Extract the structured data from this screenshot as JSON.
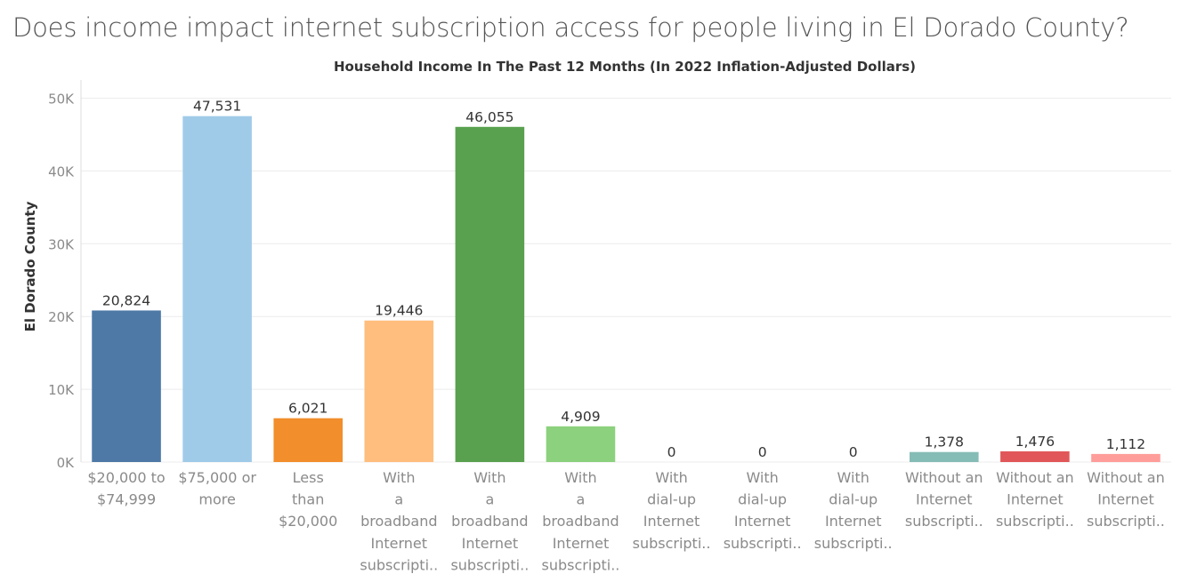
{
  "title": "Does income impact internet subscription access for people living in El Dorado County?",
  "chart_data": {
    "type": "bar",
    "column_header": "Household Income In The Past 12 Months (In 2022 Inflation-Adjusted Dollars)",
    "ylabel": "El Dorado County",
    "ylim": [
      0,
      52500
    ],
    "y_ticks": [
      0,
      10000,
      20000,
      30000,
      40000,
      50000
    ],
    "y_tick_labels": [
      "0K",
      "10K",
      "20K",
      "30K",
      "40K",
      "50K"
    ],
    "grid": true,
    "categories": [
      [
        "$20,000 to",
        "$74,999"
      ],
      [
        "$75,000 or",
        "more"
      ],
      [
        "Less",
        "than",
        "$20,000"
      ],
      [
        "With",
        "a",
        "broadband",
        "Internet",
        "subscripti.."
      ],
      [
        "With",
        "a",
        "broadband",
        "Internet",
        "subscripti.."
      ],
      [
        "With",
        "a",
        "broadband",
        "Internet",
        "subscripti.."
      ],
      [
        "With",
        "dial-up",
        "Internet",
        "subscripti.."
      ],
      [
        "With",
        "dial-up",
        "Internet",
        "subscripti.."
      ],
      [
        "With",
        "dial-up",
        "Internet",
        "subscripti.."
      ],
      [
        "Without an",
        "Internet",
        "subscripti.."
      ],
      [
        "Without an",
        "Internet",
        "subscripti.."
      ],
      [
        "Without an",
        "Internet",
        "subscripti.."
      ]
    ],
    "values": [
      20824,
      47531,
      6021,
      19446,
      46055,
      4909,
      0,
      0,
      0,
      1378,
      1476,
      1112
    ],
    "value_labels": [
      "20,824",
      "47,531",
      "6,021",
      "19,446",
      "46,055",
      "4,909",
      "0",
      "0",
      "0",
      "1,378",
      "1,476",
      "1,112"
    ],
    "colors": [
      "#4e79a7",
      "#a0cbe8",
      "#f28e2b",
      "#ffbe7d",
      "#59a14f",
      "#8cd17d",
      "#b6992d",
      "#f1ce63",
      "#499894",
      "#86bcb6",
      "#e15759",
      "#ff9d9a"
    ]
  }
}
